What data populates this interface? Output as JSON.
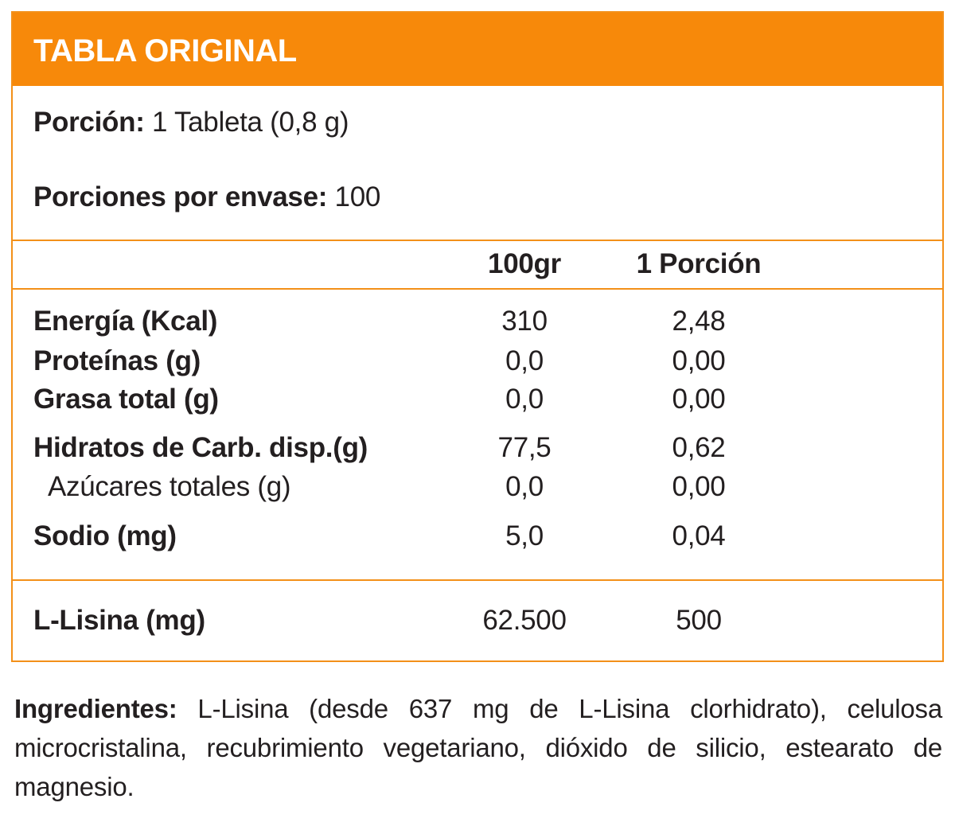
{
  "header": {
    "title": "TABLA ORIGINAL"
  },
  "serving": {
    "portion_label": "Porción:",
    "portion_value": " 1 Tableta (0,8 g)",
    "per_container_label": "Porciones por envase:",
    "per_container_value": " 100"
  },
  "columns": {
    "per100": "100gr",
    "per_portion": "1 Porción"
  },
  "rows": [
    {
      "name": "Energía (Kcal)",
      "per100": "310",
      "per_portion": "2,48"
    },
    {
      "name": "Proteínas (g)",
      "per100": "0,0",
      "per_portion": "0,00"
    },
    {
      "name": "Grasa total (g)",
      "per100": "0,0",
      "per_portion": "0,00"
    },
    {
      "name": "Hidratos de Carb. disp.(g)",
      "per100": "77,5",
      "per_portion": "0,62"
    },
    {
      "name": "Azúcares totales (g)",
      "per100": "0,0",
      "per_portion": "0,00"
    },
    {
      "name": "Sodio (mg)",
      "per100": "5,0",
      "per_portion": "0,04"
    }
  ],
  "lisina": {
    "name": "L-Lisina (mg)",
    "per100": "62.500",
    "per_portion": "500"
  },
  "ingredients": {
    "label": "Ingredientes:",
    "text": " L-Lisina (desde 637 mg de L-Lisina clorhidrato), celulosa microcristalina, recubrimiento vegetariano, dióxido de silicio, estearato de magnesio."
  },
  "colors": {
    "accent": "#f7890a",
    "border": "#f39019",
    "text": "#231f20"
  }
}
